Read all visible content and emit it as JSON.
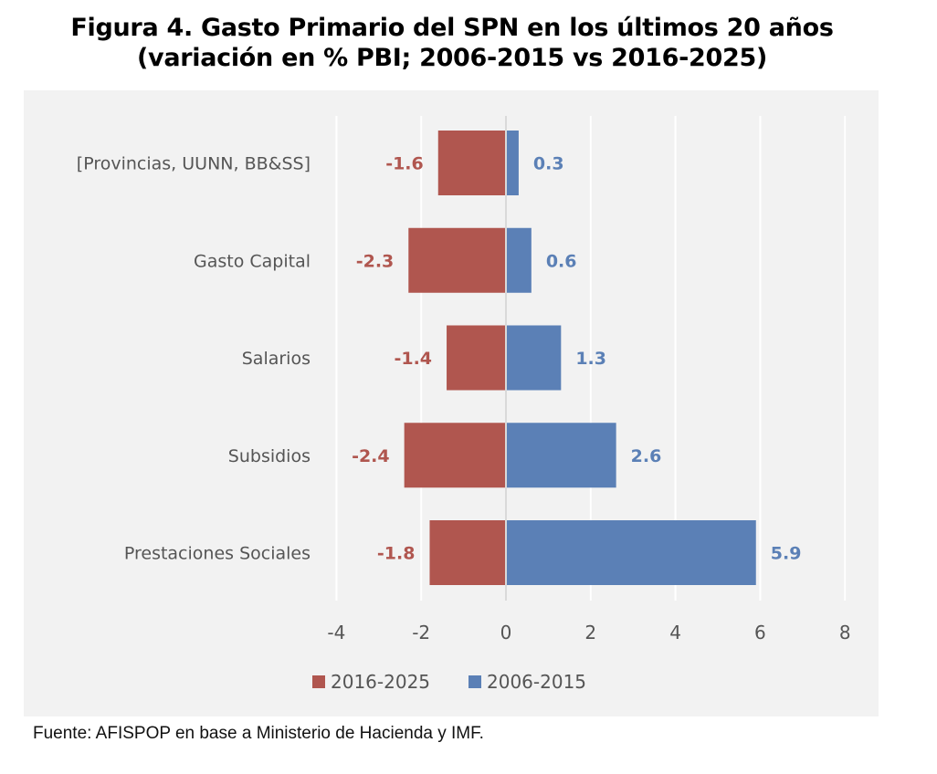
{
  "title": {
    "line1": "Figura 4. Gasto Primario del SPN en los últimos 20 años",
    "line2": "(variación en % PBI; 2006-2015 vs 2016-2025)"
  },
  "source": "Fuente: AFISPOP en base a Ministerio de Hacienda y IMF.",
  "colors": {
    "series_2016_2025": "#b0564f",
    "series_2006_2015": "#5b80b6",
    "panel_bg": "#f2f2f2",
    "grid": "#ffffff",
    "zero_line": "#d9d9d9"
  },
  "chart_data": {
    "type": "bar",
    "orientation": "horizontal",
    "title": "Figura 4. Gasto Primario del SPN en los últimos 20 años (variación en % PBI; 2006-2015 vs 2016-2025)",
    "xlabel": "",
    "ylabel": "",
    "categories": [
      "[Provincias, UUNN, BB&SS]",
      "Gasto Capital",
      "Salarios",
      "Subsidios",
      "Prestaciones Sociales"
    ],
    "series": [
      {
        "name": "2016-2025",
        "color": "#b0564f",
        "values": [
          -1.6,
          -2.3,
          -1.4,
          -2.4,
          -1.8
        ]
      },
      {
        "name": "2006-2015",
        "color": "#5b80b6",
        "values": [
          0.3,
          0.6,
          1.3,
          2.6,
          5.9
        ]
      }
    ],
    "data_labels": {
      "2016-2025": [
        "-1.6",
        "-2.3",
        "-1.4",
        "-2.4",
        "-1.8"
      ],
      "2006-2015": [
        "0.3",
        "0.6",
        "1.3",
        "2.6",
        "5.9"
      ]
    },
    "xlim": [
      -4,
      8
    ],
    "xticks": [
      -4,
      -2,
      0,
      2,
      4,
      6,
      8
    ],
    "xtick_labels": [
      "-4",
      "-2",
      "0",
      "2",
      "4",
      "6",
      "8"
    ],
    "grid": "vertical",
    "stacked": true,
    "legend": {
      "position": "bottom-left",
      "entries": [
        "2016-2025",
        "2006-2015"
      ]
    }
  }
}
